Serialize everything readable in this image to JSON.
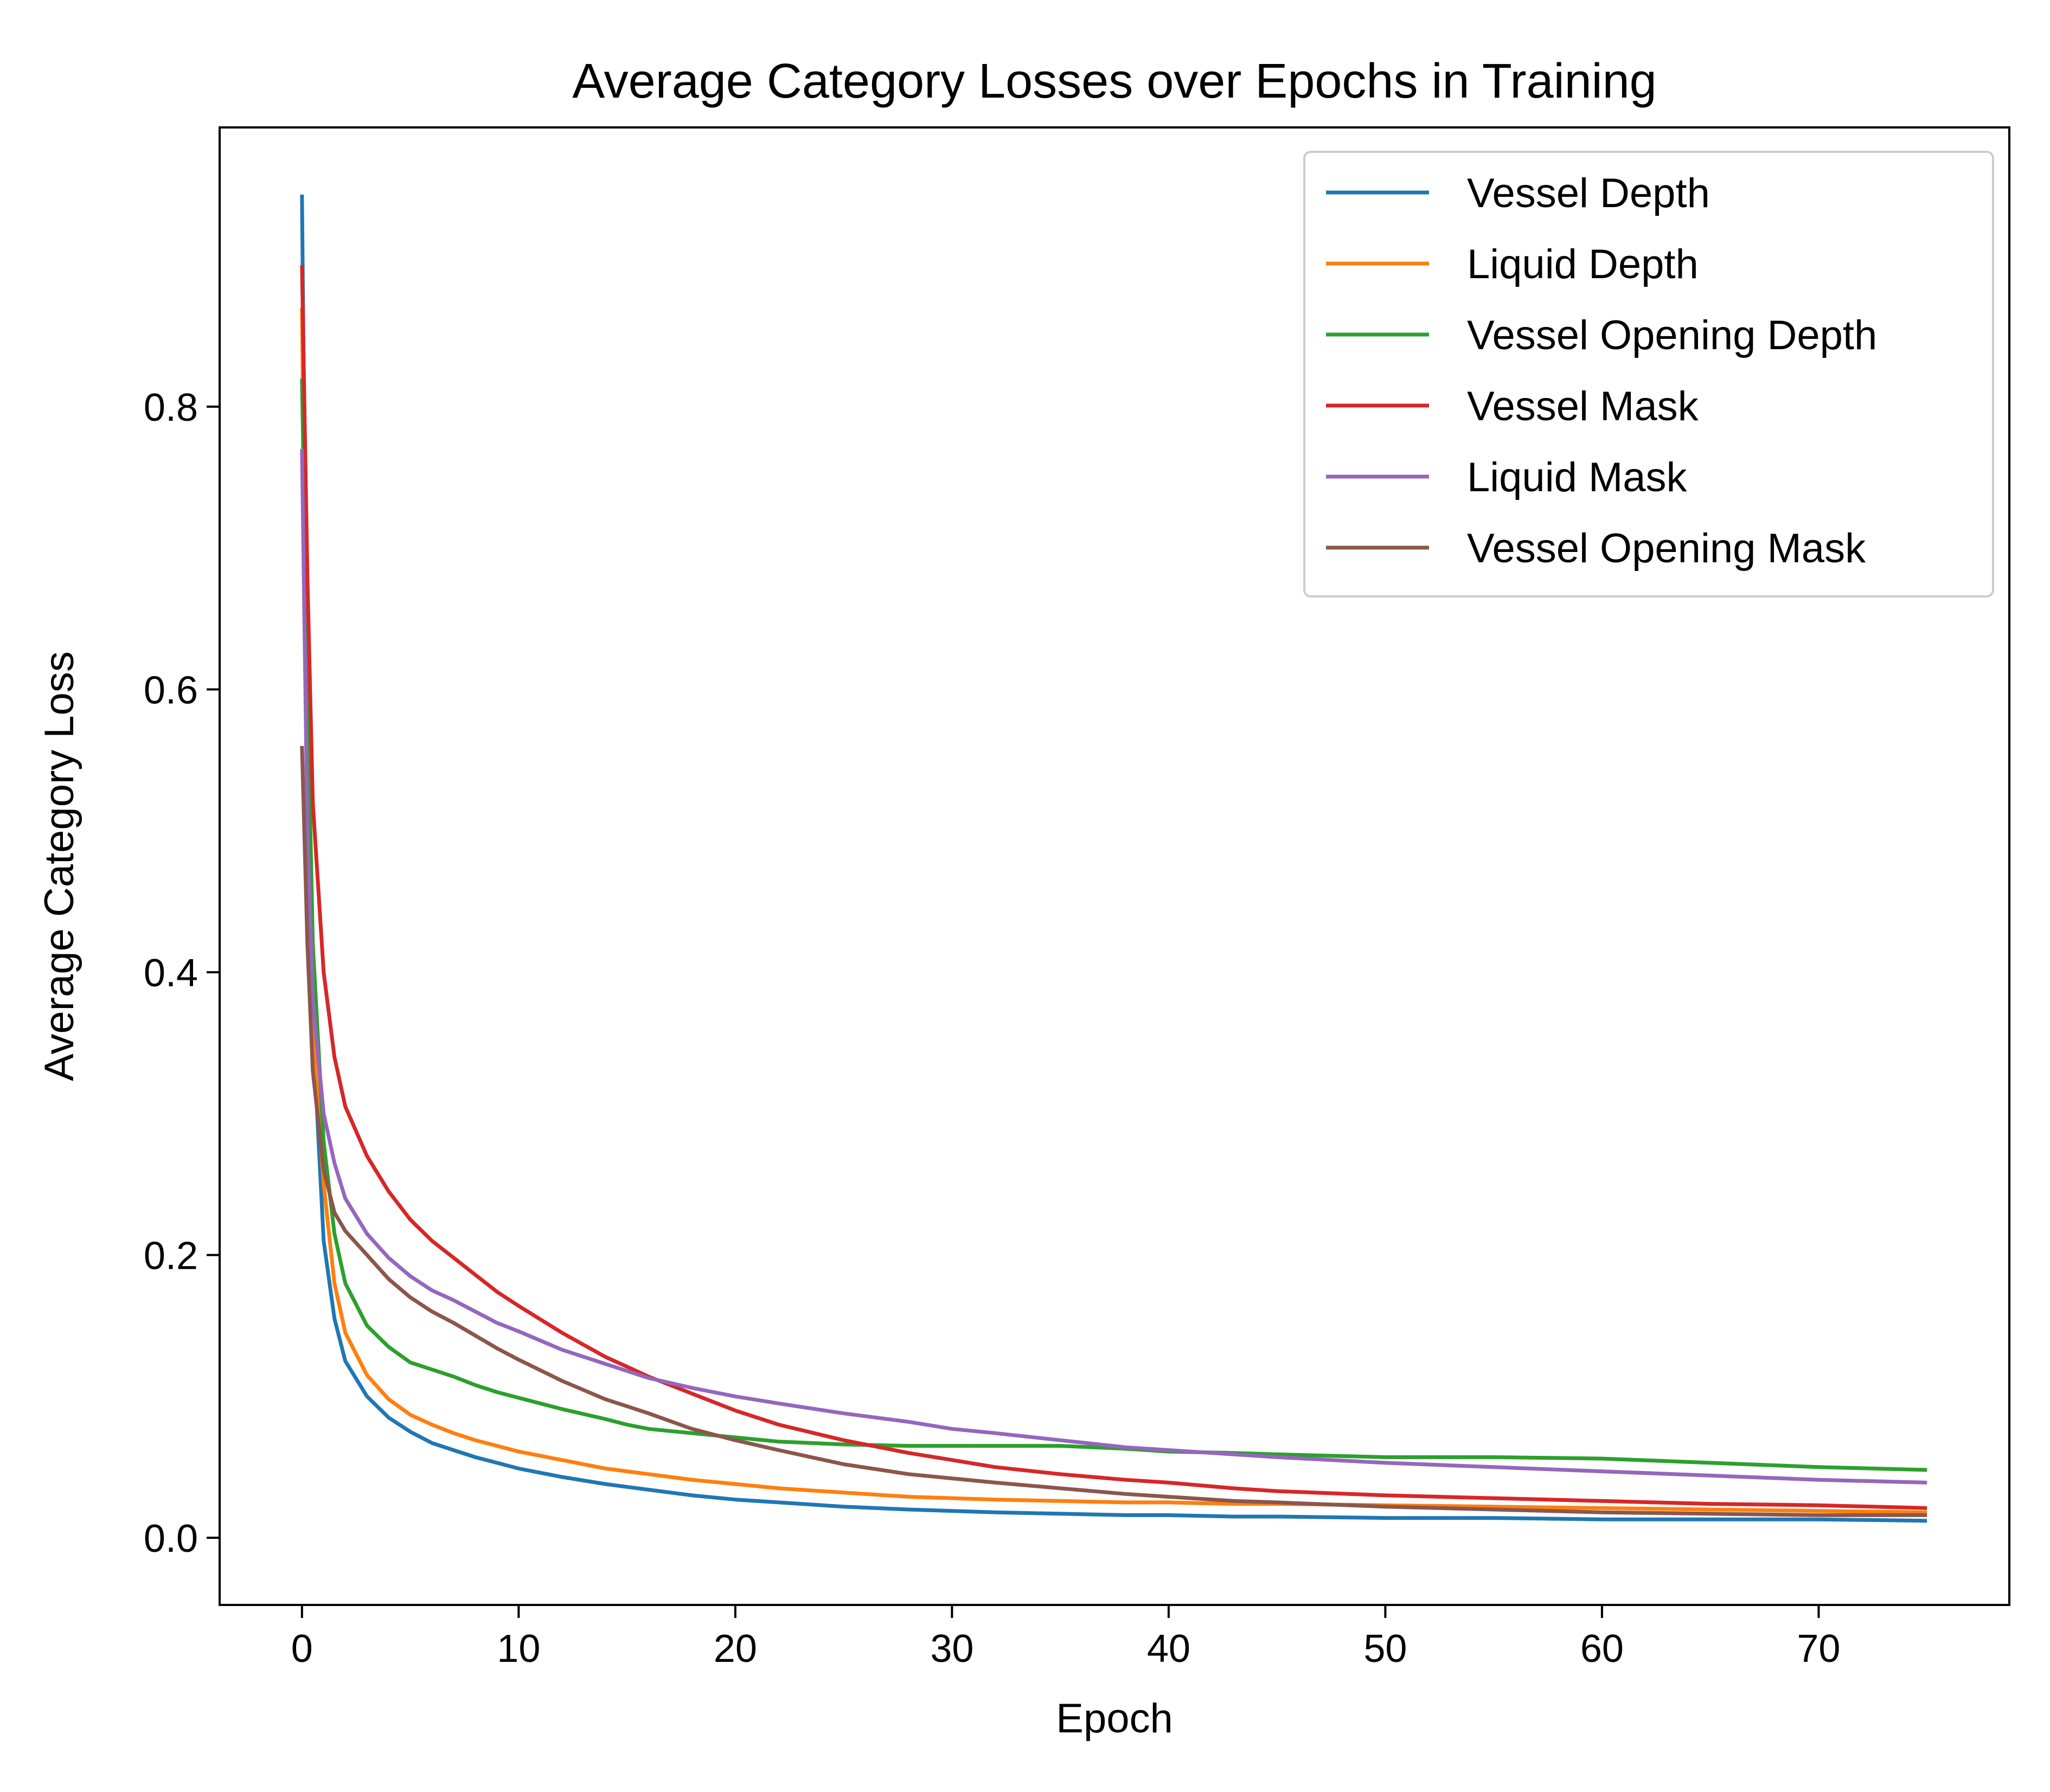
{
  "chart_data": {
    "type": "line",
    "title": "Average Category Losses over Epochs in Training",
    "xlabel": "Epoch",
    "ylabel": "Average Category Loss",
    "xlim": [
      -3.8,
      78.8
    ],
    "ylim": [
      -0.0475,
      0.9975
    ],
    "xticks": [
      0,
      10,
      20,
      30,
      40,
      50,
      60,
      70
    ],
    "yticks": [
      0.0,
      0.2,
      0.4,
      0.6,
      0.8
    ],
    "xtick_labels": [
      "0",
      "10",
      "20",
      "30",
      "40",
      "50",
      "60",
      "70"
    ],
    "ytick_labels": [
      "0.0",
      "0.2",
      "0.4",
      "0.6",
      "0.8"
    ],
    "grid": false,
    "legend_position": "top-right",
    "x": [
      0,
      0.25,
      0.5,
      1,
      1.5,
      2,
      3,
      4,
      5,
      6,
      7,
      8,
      9,
      10,
      12,
      14,
      15,
      16,
      18,
      20,
      22,
      25,
      28,
      30,
      32,
      35,
      38,
      40,
      43,
      45,
      50,
      55,
      60,
      65,
      70,
      75
    ],
    "series": [
      {
        "name": "Vessel Depth",
        "color": "#1f77b4",
        "values": [
          0.95,
          0.55,
          0.36,
          0.21,
          0.155,
          0.125,
          0.1,
          0.085,
          0.075,
          0.067,
          0.062,
          0.057,
          0.053,
          0.049,
          0.043,
          0.038,
          0.036,
          0.034,
          0.03,
          0.027,
          0.025,
          0.022,
          0.02,
          0.019,
          0.018,
          0.017,
          0.016,
          0.016,
          0.015,
          0.015,
          0.014,
          0.014,
          0.013,
          0.013,
          0.013,
          0.012
        ]
      },
      {
        "name": "Liquid Depth",
        "color": "#ff7f0e",
        "values": [
          0.87,
          0.52,
          0.36,
          0.25,
          0.18,
          0.145,
          0.115,
          0.098,
          0.087,
          0.08,
          0.074,
          0.069,
          0.065,
          0.061,
          0.055,
          0.049,
          0.047,
          0.045,
          0.041,
          0.038,
          0.035,
          0.032,
          0.029,
          0.028,
          0.027,
          0.026,
          0.025,
          0.025,
          0.024,
          0.024,
          0.023,
          0.022,
          0.021,
          0.02,
          0.019,
          0.018
        ]
      },
      {
        "name": "Vessel Opening Depth",
        "color": "#2ca02c",
        "values": [
          0.82,
          0.6,
          0.42,
          0.28,
          0.215,
          0.18,
          0.15,
          0.135,
          0.124,
          0.119,
          0.114,
          0.108,
          0.103,
          0.099,
          0.091,
          0.084,
          0.08,
          0.077,
          0.074,
          0.071,
          0.068,
          0.066,
          0.065,
          0.065,
          0.065,
          0.065,
          0.063,
          0.061,
          0.06,
          0.059,
          0.057,
          0.057,
          0.056,
          0.053,
          0.05,
          0.048
        ]
      },
      {
        "name": "Vessel Mask",
        "color": "#d62728",
        "values": [
          0.9,
          0.68,
          0.52,
          0.4,
          0.34,
          0.305,
          0.27,
          0.245,
          0.225,
          0.21,
          0.198,
          0.186,
          0.174,
          0.164,
          0.145,
          0.128,
          0.121,
          0.114,
          0.102,
          0.09,
          0.08,
          0.069,
          0.06,
          0.055,
          0.05,
          0.045,
          0.041,
          0.039,
          0.035,
          0.033,
          0.03,
          0.028,
          0.026,
          0.024,
          0.023,
          0.021
        ]
      },
      {
        "name": "Liquid Mask",
        "color": "#9467bd",
        "values": [
          0.77,
          0.5,
          0.38,
          0.3,
          0.265,
          0.24,
          0.215,
          0.198,
          0.185,
          0.175,
          0.168,
          0.16,
          0.152,
          0.146,
          0.133,
          0.123,
          0.118,
          0.113,
          0.106,
          0.1,
          0.095,
          0.088,
          0.082,
          0.077,
          0.074,
          0.069,
          0.064,
          0.062,
          0.059,
          0.057,
          0.053,
          0.05,
          0.047,
          0.044,
          0.041,
          0.039
        ]
      },
      {
        "name": "Vessel Opening Mask",
        "color": "#8c564b",
        "values": [
          0.56,
          0.42,
          0.33,
          0.26,
          0.23,
          0.217,
          0.2,
          0.183,
          0.17,
          0.16,
          0.152,
          0.143,
          0.134,
          0.126,
          0.111,
          0.098,
          0.093,
          0.088,
          0.077,
          0.069,
          0.062,
          0.052,
          0.045,
          0.042,
          0.039,
          0.035,
          0.031,
          0.029,
          0.026,
          0.025,
          0.022,
          0.02,
          0.018,
          0.017,
          0.016,
          0.016
        ]
      }
    ]
  }
}
